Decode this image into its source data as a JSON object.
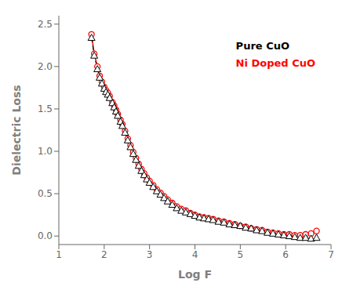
{
  "chart_data": {
    "type": "line",
    "title": "",
    "xlabel": "Log F",
    "ylabel": "Dielectric Loss",
    "xlim": [
      1,
      7
    ],
    "ylim": [
      -0.1,
      2.6
    ],
    "xticks": [
      1,
      2,
      3,
      4,
      5,
      6,
      7
    ],
    "yticks": [
      {
        "value": 0.0,
        "label": "0.0"
      },
      0.5,
      {
        "value": 1.0,
        "label": "1.0"
      },
      1.5,
      {
        "value": 2.0,
        "label": "2.0"
      },
      2.5
    ],
    "grid": false,
    "legend": "upper right",
    "x": [
      1.72,
      1.78,
      1.85,
      1.9,
      1.95,
      2.0,
      2.04,
      2.08,
      2.12,
      2.18,
      2.22,
      2.26,
      2.3,
      2.36,
      2.4,
      2.46,
      2.52,
      2.58,
      2.64,
      2.7,
      2.76,
      2.82,
      2.88,
      2.94,
      3.0,
      3.08,
      3.16,
      3.24,
      3.32,
      3.4,
      3.5,
      3.6,
      3.7,
      3.8,
      3.9,
      4.0,
      4.1,
      4.2,
      4.3,
      4.4,
      4.52,
      4.64,
      4.76,
      4.88,
      5.0,
      5.12,
      5.24,
      5.36,
      5.48,
      5.6,
      5.72,
      5.84,
      5.96,
      6.08,
      6.2,
      6.32,
      6.44,
      6.56,
      6.68
    ],
    "series": [
      {
        "name": "Pure CuO",
        "color": "black",
        "marker": "triangle",
        "line_style": "dashed",
        "values": [
          2.34,
          2.13,
          1.97,
          1.87,
          1.8,
          1.74,
          1.7,
          1.67,
          1.63,
          1.57,
          1.52,
          1.47,
          1.42,
          1.35,
          1.3,
          1.22,
          1.13,
          1.05,
          0.97,
          0.9,
          0.83,
          0.77,
          0.72,
          0.67,
          0.63,
          0.58,
          0.53,
          0.49,
          0.45,
          0.41,
          0.37,
          0.33,
          0.3,
          0.28,
          0.26,
          0.24,
          0.22,
          0.21,
          0.2,
          0.19,
          0.17,
          0.16,
          0.14,
          0.13,
          0.12,
          0.1,
          0.09,
          0.07,
          0.06,
          0.04,
          0.03,
          0.02,
          0.01,
          0.0,
          -0.01,
          -0.02,
          -0.02,
          -0.03,
          -0.02
        ]
      },
      {
        "name": "Ni Doped CuO",
        "color": "red",
        "marker": "circle",
        "line_style": "solid",
        "values": [
          2.38,
          2.15,
          2.0,
          1.89,
          1.82,
          1.76,
          1.72,
          1.69,
          1.65,
          1.58,
          1.54,
          1.49,
          1.44,
          1.37,
          1.32,
          1.24,
          1.15,
          1.07,
          0.99,
          0.92,
          0.85,
          0.79,
          0.74,
          0.69,
          0.65,
          0.6,
          0.55,
          0.51,
          0.47,
          0.43,
          0.39,
          0.35,
          0.32,
          0.3,
          0.27,
          0.25,
          0.23,
          0.22,
          0.21,
          0.2,
          0.18,
          0.17,
          0.15,
          0.14,
          0.12,
          0.11,
          0.09,
          0.08,
          0.07,
          0.05,
          0.04,
          0.03,
          0.02,
          0.02,
          0.01,
          0.01,
          0.02,
          0.03,
          0.06
        ]
      }
    ]
  }
}
